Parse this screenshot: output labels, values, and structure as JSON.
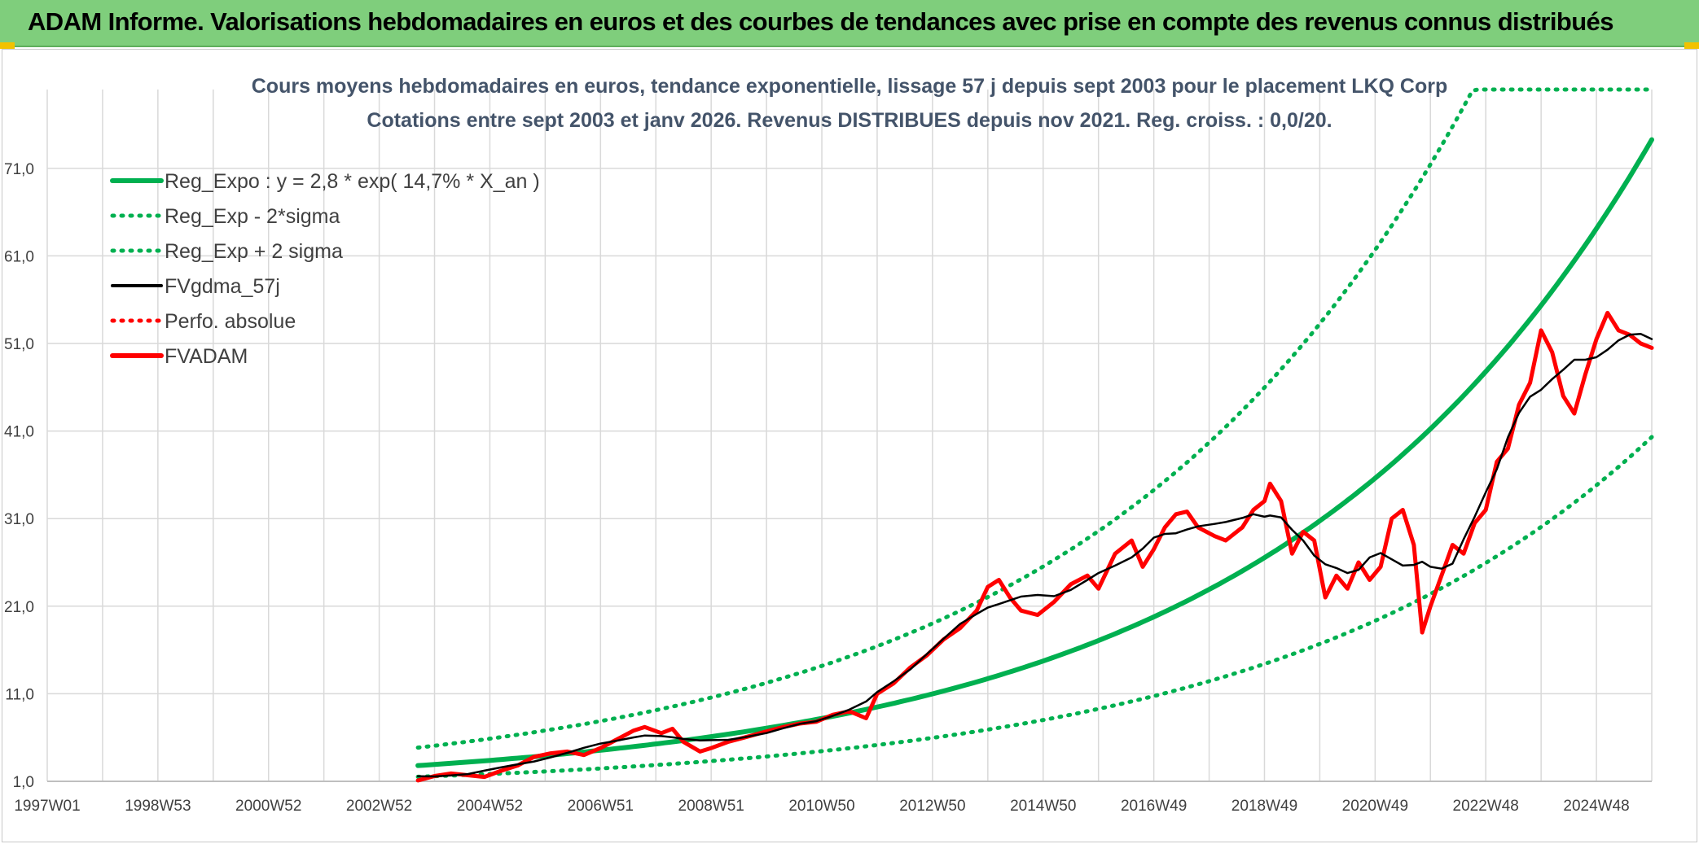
{
  "banner": {
    "title": "ADAM Informe. Valorisations hebdomadaires en euros et des courbes de tendances avec prise en compte des revenus connus distribués"
  },
  "colors": {
    "banner_bg": "#7fce7c",
    "green": "#00b050",
    "black": "#000000",
    "red": "#ff0000",
    "grid": "#d9d9d9",
    "title_text": "#44546a",
    "axis_text": "#404040",
    "corner": "#f2c200"
  },
  "chart_data": {
    "type": "line",
    "title_line1": "Cours moyens hebdomadaires en euros, tendance exponentielle, lissage 57 j depuis sept 2003 pour le placement LKQ Corp",
    "title_line2": "Cotations entre sept 2003 et janv 2026. Revenus DISTRIBUES depuis nov 2021. Reg. croiss. : 0,0/20.",
    "xlabel": "",
    "ylabel": "",
    "xlim": [
      1997.0,
      2026.0
    ],
    "ylim": [
      1.0,
      80.0
    ],
    "y_ticks": [
      1.0,
      11.0,
      21.0,
      31.0,
      41.0,
      51.0,
      61.0,
      71.0
    ],
    "y_tick_labels": [
      "1,0",
      "11,0",
      "21,0",
      "31,0",
      "41,0",
      "51,0",
      "61,0",
      "71,0"
    ],
    "x_ticks": [
      1997.0,
      1999.0,
      2001.0,
      2003.0,
      2005.0,
      2007.0,
      2009.0,
      2011.0,
      2013.0,
      2015.0,
      2017.0,
      2019.0,
      2021.0,
      2023.0,
      2025.0
    ],
    "x_tick_labels": [
      "1997W01",
      "1998W53",
      "2000W52",
      "2002W52",
      "2004W52",
      "2006W51",
      "2008W51",
      "2010W50",
      "2012W50",
      "2014W50",
      "2016W49",
      "2018W49",
      "2020W49",
      "2022W48",
      "2024W48"
    ],
    "grid": true,
    "legend_position": "top-left",
    "legend": [
      {
        "label": "Reg_Expo : y = 2,8 * exp( 14,7% *  X_an )",
        "style": "solid-thick",
        "color": "#00b050"
      },
      {
        "label": "Reg_Exp - 2*sigma",
        "style": "dotted",
        "color": "#00b050"
      },
      {
        "label": "Reg_Exp + 2 sigma",
        "style": "dotted",
        "color": "#00b050"
      },
      {
        "label": "FVgdma_57j",
        "style": "solid",
        "color": "#000000"
      },
      {
        "label": "Perfo. absolue",
        "style": "dotted",
        "color": "#ff0000"
      },
      {
        "label": "FVADAM",
        "style": "solid-thick",
        "color": "#ff0000"
      }
    ],
    "series": [
      {
        "name": "Reg_Expo",
        "kind": "exp",
        "a": 2.8,
        "b": 0.147,
        "x_start": 2003.7,
        "x_end": 2026.0
      },
      {
        "name": "Reg_Exp - 2*sigma",
        "kind": "exp",
        "a": 1.52,
        "b": 0.147,
        "x_start": 2003.7,
        "x_end": 2026.0
      },
      {
        "name": "Reg_Exp + 2 sigma",
        "kind": "exp",
        "a": 4.85,
        "b": 0.147,
        "x_start": 2003.7,
        "x_end": 2026.0,
        "cap": 80.0
      },
      {
        "name": "FVADAM",
        "kind": "points",
        "points": [
          [
            2003.7,
            1.1
          ],
          [
            2004.0,
            1.6
          ],
          [
            2004.3,
            1.9
          ],
          [
            2004.6,
            1.7
          ],
          [
            2004.9,
            1.5
          ],
          [
            2005.2,
            2.2
          ],
          [
            2005.5,
            2.8
          ],
          [
            2005.8,
            3.8
          ],
          [
            2006.1,
            4.2
          ],
          [
            2006.4,
            4.4
          ],
          [
            2006.7,
            4.0
          ],
          [
            2007.0,
            4.8
          ],
          [
            2007.3,
            5.8
          ],
          [
            2007.6,
            6.8
          ],
          [
            2007.8,
            7.2
          ],
          [
            2008.1,
            6.5
          ],
          [
            2008.3,
            7.0
          ],
          [
            2008.5,
            5.5
          ],
          [
            2008.8,
            4.4
          ],
          [
            2009.0,
            4.8
          ],
          [
            2009.3,
            5.5
          ],
          [
            2009.6,
            6.0
          ],
          [
            2010.0,
            6.7
          ],
          [
            2010.3,
            7.2
          ],
          [
            2010.6,
            7.6
          ],
          [
            2010.9,
            7.8
          ],
          [
            2011.2,
            8.6
          ],
          [
            2011.5,
            9.0
          ],
          [
            2011.8,
            8.2
          ],
          [
            2012.0,
            11.0
          ],
          [
            2012.3,
            12.2
          ],
          [
            2012.6,
            14.0
          ],
          [
            2012.9,
            15.4
          ],
          [
            2013.2,
            17.2
          ],
          [
            2013.5,
            18.5
          ],
          [
            2013.8,
            20.5
          ],
          [
            2014.0,
            23.2
          ],
          [
            2014.2,
            24.0
          ],
          [
            2014.4,
            22.0
          ],
          [
            2014.6,
            20.5
          ],
          [
            2014.9,
            20.0
          ],
          [
            2015.2,
            21.5
          ],
          [
            2015.5,
            23.5
          ],
          [
            2015.8,
            24.5
          ],
          [
            2016.0,
            23.0
          ],
          [
            2016.3,
            27.0
          ],
          [
            2016.6,
            28.5
          ],
          [
            2016.8,
            25.5
          ],
          [
            2017.0,
            27.5
          ],
          [
            2017.2,
            30.0
          ],
          [
            2017.4,
            31.5
          ],
          [
            2017.6,
            31.8
          ],
          [
            2017.8,
            30.0
          ],
          [
            2018.1,
            29.0
          ],
          [
            2018.3,
            28.5
          ],
          [
            2018.6,
            30.0
          ],
          [
            2018.8,
            32.0
          ],
          [
            2019.0,
            33.0
          ],
          [
            2019.1,
            35.0
          ],
          [
            2019.3,
            33.0
          ],
          [
            2019.5,
            27.0
          ],
          [
            2019.7,
            29.5
          ],
          [
            2019.9,
            28.5
          ],
          [
            2020.1,
            22.0
          ],
          [
            2020.3,
            24.5
          ],
          [
            2020.5,
            23.0
          ],
          [
            2020.7,
            26.0
          ],
          [
            2020.9,
            24.0
          ],
          [
            2021.1,
            25.5
          ],
          [
            2021.3,
            31.0
          ],
          [
            2021.5,
            32.0
          ],
          [
            2021.7,
            28.0
          ],
          [
            2021.85,
            18.0
          ],
          [
            2022.0,
            21.0
          ],
          [
            2022.2,
            24.5
          ],
          [
            2022.4,
            28.0
          ],
          [
            2022.6,
            27.0
          ],
          [
            2022.8,
            30.5
          ],
          [
            2023.0,
            32.0
          ],
          [
            2023.2,
            37.5
          ],
          [
            2023.4,
            39.0
          ],
          [
            2023.6,
            44.0
          ],
          [
            2023.8,
            46.5
          ],
          [
            2024.0,
            52.5
          ],
          [
            2024.2,
            50.0
          ],
          [
            2024.4,
            45.0
          ],
          [
            2024.6,
            43.0
          ],
          [
            2024.8,
            47.5
          ],
          [
            2025.0,
            51.5
          ],
          [
            2025.2,
            54.5
          ],
          [
            2025.4,
            52.5
          ],
          [
            2025.6,
            52.0
          ],
          [
            2025.8,
            51.0
          ],
          [
            2026.0,
            50.5
          ]
        ]
      },
      {
        "name": "FVgdma_57j",
        "kind": "smooth_of",
        "source": "FVADAM",
        "window": 3
      }
    ]
  }
}
